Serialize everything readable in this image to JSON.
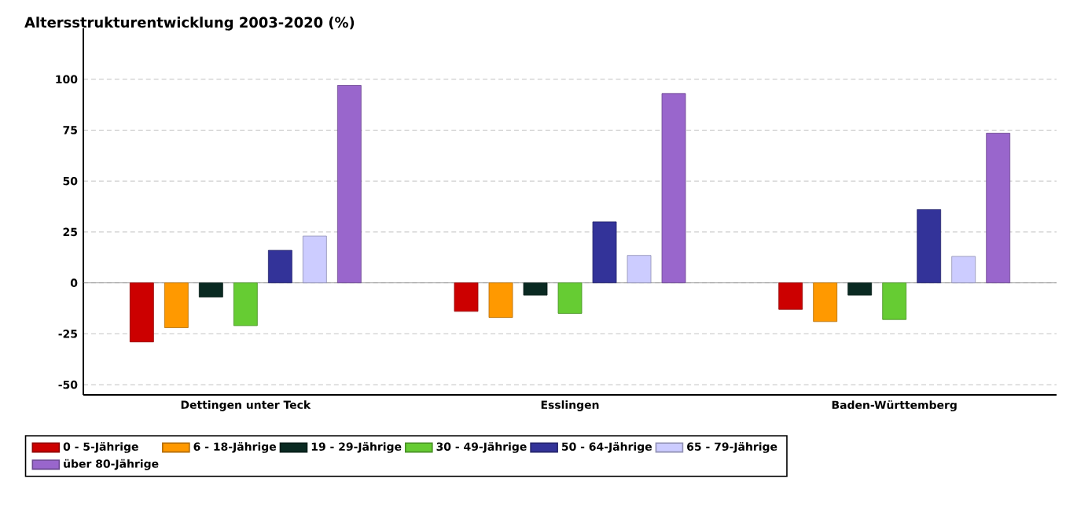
{
  "chart_data": {
    "type": "bar",
    "title": "Altersstrukturentwicklung 2003-2020 (%)",
    "categories": [
      "Dettingen unter Teck",
      "Esslingen",
      "Baden-Württemberg"
    ],
    "series": [
      {
        "name": "0 - 5-Jährige",
        "color": "#cc0000",
        "values": [
          -29,
          -14,
          -13
        ]
      },
      {
        "name": "6 - 18-Jährige",
        "color": "#ff9900",
        "values": [
          -22,
          -17,
          -19
        ]
      },
      {
        "name": "19 - 29-Jährige",
        "color": "#0a2a22",
        "values": [
          -7,
          -6,
          -6
        ]
      },
      {
        "name": "30 - 49-Jährige",
        "color": "#66cc33",
        "values": [
          -21,
          -15,
          -18
        ]
      },
      {
        "name": "50 - 64-Jährige",
        "color": "#333399",
        "values": [
          16,
          30,
          36
        ]
      },
      {
        "name": "65 - 79-Jährige",
        "color": "#ccccff",
        "values": [
          23,
          13.5,
          13
        ]
      },
      {
        "name": "über 80-Jährige",
        "color": "#9966cc",
        "values": [
          97,
          93,
          73.5
        ]
      }
    ],
    "ylim": [
      -55,
      125
    ],
    "yticks": [
      -50,
      -25,
      0,
      25,
      50,
      75,
      100
    ],
    "grid": "y",
    "legend": "bottom"
  }
}
